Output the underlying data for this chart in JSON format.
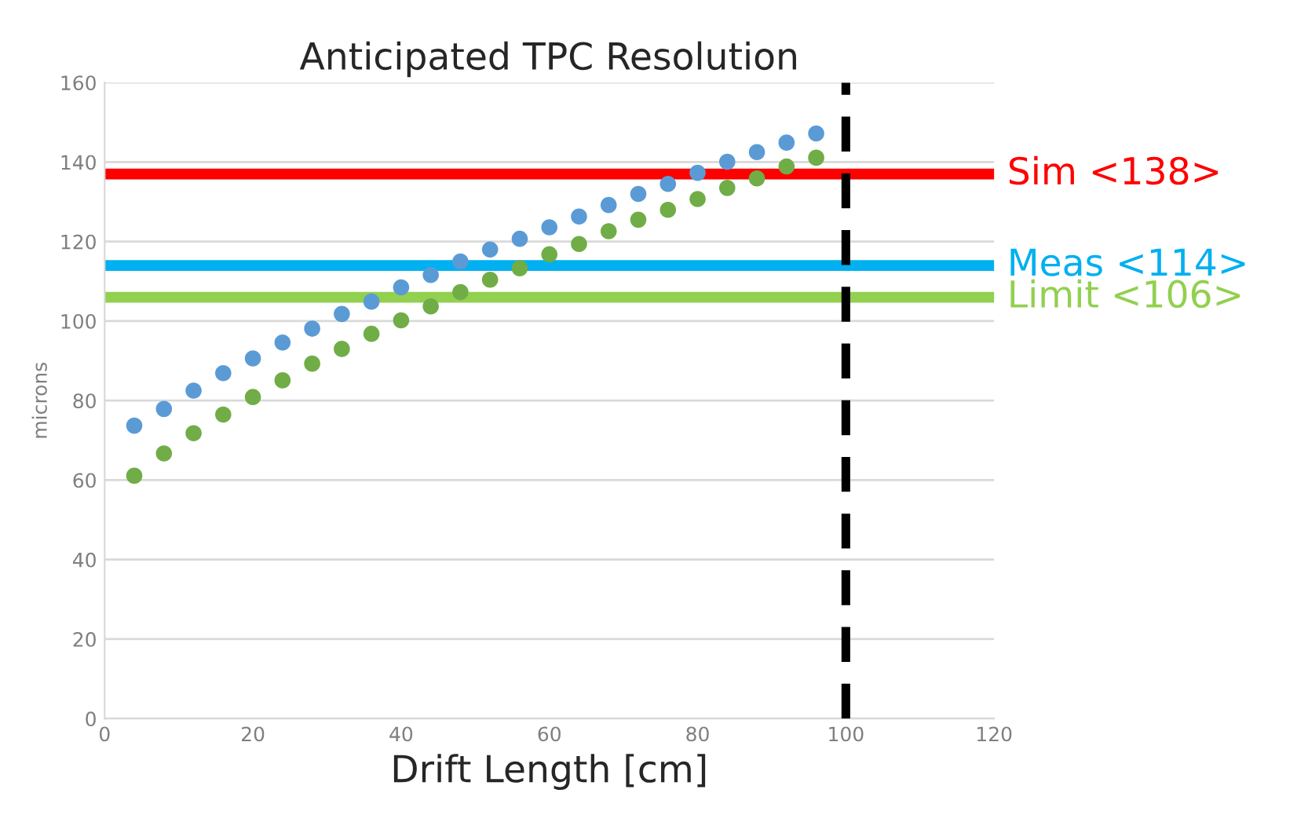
{
  "chart_data": {
    "type": "scatter",
    "title": "Anticipated TPC Resolution",
    "xlabel": "Drift Length [cm]",
    "ylabel": "microns",
    "x": [
      4,
      8,
      12,
      16,
      20,
      24,
      28,
      32,
      36,
      40,
      44,
      48,
      52,
      56,
      60,
      64,
      68,
      72,
      76,
      80,
      84,
      88,
      92,
      96
    ],
    "series": [
      {
        "color": "#5b9bd5",
        "values": [
          73.7,
          77.9,
          82.5,
          86.9,
          90.6,
          94.6,
          98.1,
          101.8,
          104.9,
          108.5,
          111.6,
          115.0,
          118.0,
          120.7,
          123.6,
          126.3,
          129.2,
          132.0,
          134.5,
          137.3,
          140.1,
          142.5,
          144.9,
          147.2
        ]
      },
      {
        "color": "#70ad47",
        "values": [
          61.1,
          66.7,
          71.8,
          76.5,
          80.9,
          85.1,
          89.3,
          93.0,
          96.8,
          100.2,
          103.7,
          107.3,
          110.4,
          113.3,
          116.8,
          119.4,
          122.6,
          125.5,
          128.0,
          130.7,
          133.5,
          135.9,
          138.9,
          141.1
        ]
      }
    ],
    "marker": "circle",
    "xlim": [
      0,
      120
    ],
    "ylim": [
      0,
      160
    ],
    "xticks": [
      0,
      20,
      40,
      60,
      80,
      100,
      120
    ],
    "yticks": [
      0,
      20,
      40,
      60,
      80,
      100,
      120,
      140,
      160
    ],
    "grid": "y",
    "ref_lines": [
      {
        "axis": "y",
        "value": 137,
        "label": "Sim <138>",
        "color": "#ff0000",
        "line_style": "solid"
      },
      {
        "axis": "y",
        "value": 114,
        "label": "Meas <114>",
        "color": "#00b0f0",
        "line_style": "solid"
      },
      {
        "axis": "y",
        "value": 106,
        "label": "Limit <106>",
        "color": "#92d050",
        "line_style": "solid"
      },
      {
        "axis": "x",
        "value": 100,
        "color": "#000000",
        "line_style": "dashed"
      }
    ]
  }
}
